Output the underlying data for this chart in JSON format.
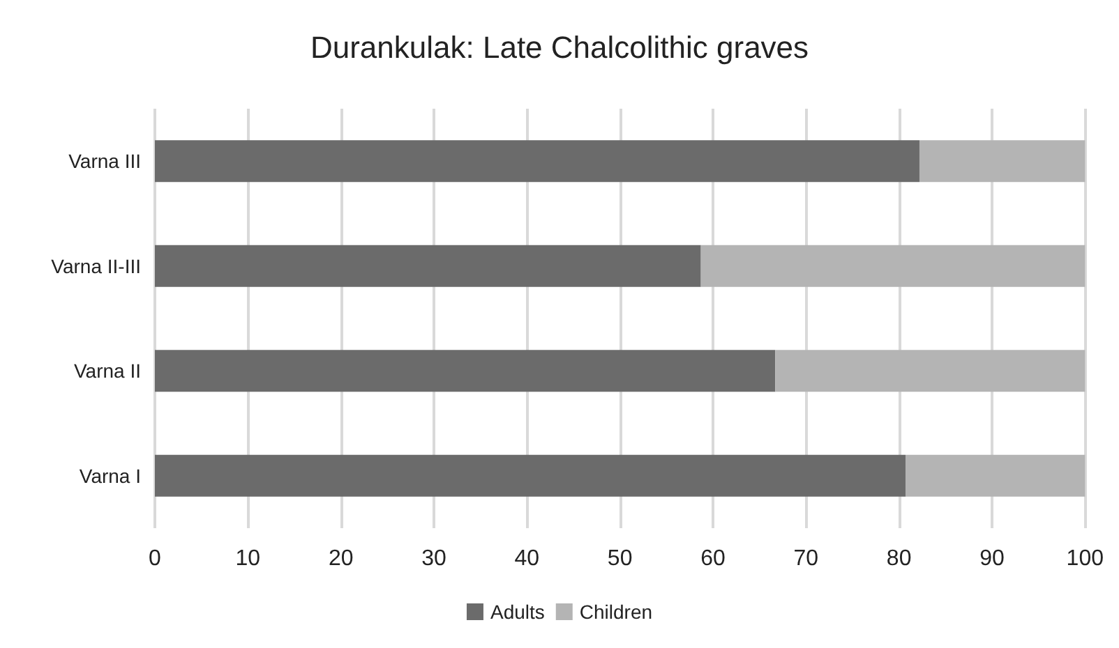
{
  "chart_data": {
    "type": "bar",
    "title": "Durankulak: Late Chalcolithic graves",
    "orientation": "horizontal",
    "stacked": true,
    "categories": [
      "Varna III",
      "Varna II-III",
      "Varna II",
      "Varna I"
    ],
    "series": [
      {
        "name": "Adults",
        "color": "#6b6b6b",
        "values": [
          82.2,
          58.7,
          66.7,
          80.7
        ]
      },
      {
        "name": "Children",
        "color": "#b4b4b4",
        "values": [
          17.8,
          41.3,
          33.3,
          19.3
        ]
      }
    ],
    "xlim": [
      0,
      100
    ],
    "xticks": [
      0,
      10,
      20,
      30,
      40,
      50,
      60,
      70,
      80,
      90,
      100
    ],
    "grid": "x",
    "legend": "bottom"
  }
}
